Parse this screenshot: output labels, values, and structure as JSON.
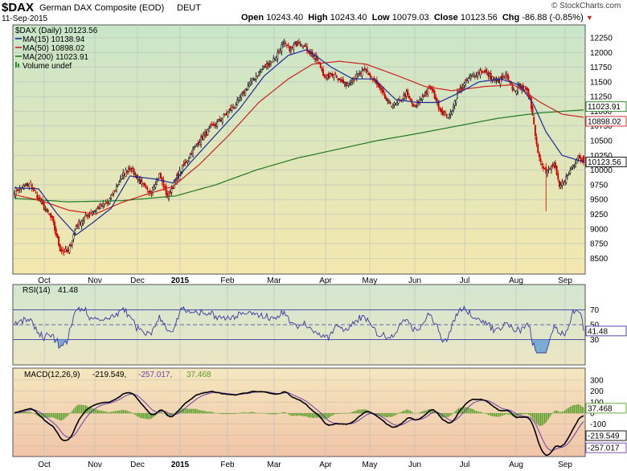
{
  "header": {
    "symbol": "$DAX",
    "name": "German DAX Composite (EOD)",
    "exchange": "DEUT",
    "date": "11-Sep-2015",
    "credit": "© StockCharts.com",
    "ohlc": [
      {
        "label": "Open",
        "value": "10243.40"
      },
      {
        "label": "High",
        "value": "10243.40"
      },
      {
        "label": "Low",
        "value": "10079.03"
      },
      {
        "label": "Close",
        "value": "10123.56"
      }
    ],
    "chg_label": "Chg",
    "chg_value": "-86.88 (-0.85%)"
  },
  "legend": [
    {
      "text": "$DAX (Daily) 10123.56",
      "color": "#000000",
      "icon": "candlestick-icon"
    },
    {
      "text": "MA(15) 10138.94",
      "color": "#1a2a9a",
      "icon": "line-icon"
    },
    {
      "text": "MA(50) 10898.02",
      "color": "#cc2020",
      "icon": "line-icon"
    },
    {
      "text": "MA(200) 11023.91",
      "color": "#1f7a1f",
      "icon": "line-icon"
    },
    {
      "text": "Volume undef",
      "color": "#2a8a2a",
      "icon": "volume-icon"
    }
  ],
  "price_tags": [
    {
      "text": "11023.91",
      "value": 11023.91,
      "color": "#1f7a1f"
    },
    {
      "text": "10898.02",
      "value": 10898.02,
      "color": "#cc2020"
    },
    {
      "text": "10123.56",
      "value": 10123.56,
      "color": "#000000"
    }
  ],
  "rsi": {
    "label": "RSI(14)",
    "value": "41.48",
    "tag": "41.48",
    "ticks": [
      70,
      50,
      30
    ],
    "color": "#3a3aa0",
    "fill_color": "#5b9bd5"
  },
  "macd": {
    "label": "MACD(12,26,9)",
    "macd_value": "-219.549,",
    "signal_value": "-257.017,",
    "hist_value": "37.468",
    "tags": [
      "37.468",
      "-219.549",
      "-257.017"
    ],
    "ticks": [
      300,
      200,
      100,
      0,
      -100,
      -200,
      -300
    ],
    "colors": {
      "macd": "#000000",
      "signal": "#6a3fb0",
      "hist": "#5aa02c"
    }
  },
  "chart_data": {
    "type": "candlestick",
    "title": "$DAX German DAX Composite (EOD) DEUT",
    "x_labels": [
      "Oct",
      "Nov",
      "Dec",
      "2015",
      "Feb",
      "Mar",
      "Apr",
      "May",
      "Jun",
      "Jul",
      "Aug",
      "Sep"
    ],
    "y_ticks": [
      12250,
      12000,
      11750,
      11500,
      11250,
      11000,
      10750,
      10500,
      10250,
      10000,
      9750,
      9500,
      9250,
      9000,
      8750,
      8500
    ],
    "ylim": [
      8300,
      12400
    ],
    "close_path_approx": [
      [
        0,
        9650
      ],
      [
        12,
        9760
      ],
      [
        18,
        9500
      ],
      [
        28,
        9160
      ],
      [
        34,
        8650
      ],
      [
        40,
        8600
      ],
      [
        46,
        9050
      ],
      [
        58,
        9300
      ],
      [
        70,
        9450
      ],
      [
        80,
        9900
      ],
      [
        86,
        10050
      ],
      [
        94,
        9800
      ],
      [
        100,
        9600
      ],
      [
        108,
        9920
      ],
      [
        114,
        9550
      ],
      [
        124,
        10000
      ],
      [
        136,
        10450
      ],
      [
        146,
        10700
      ],
      [
        158,
        10950
      ],
      [
        166,
        11150
      ],
      [
        176,
        11500
      ],
      [
        184,
        11700
      ],
      [
        194,
        11900
      ],
      [
        200,
        12150
      ],
      [
        206,
        12050
      ],
      [
        212,
        12200
      ],
      [
        218,
        12050
      ],
      [
        226,
        11850
      ],
      [
        232,
        11550
      ],
      [
        238,
        11650
      ],
      [
        246,
        11450
      ],
      [
        252,
        11550
      ],
      [
        262,
        11700
      ],
      [
        270,
        11450
      ],
      [
        278,
        11150
      ],
      [
        284,
        11100
      ],
      [
        292,
        11300
      ],
      [
        298,
        11050
      ],
      [
        304,
        11250
      ],
      [
        310,
        11400
      ],
      [
        318,
        11000
      ],
      [
        324,
        10900
      ],
      [
        330,
        11300
      ],
      [
        338,
        11550
      ],
      [
        348,
        11700
      ],
      [
        354,
        11600
      ],
      [
        360,
        11500
      ],
      [
        366,
        11600
      ],
      [
        372,
        11350
      ],
      [
        378,
        11450
      ],
      [
        384,
        11250
      ],
      [
        390,
        10300
      ],
      [
        396,
        9950
      ],
      [
        402,
        10100
      ],
      [
        406,
        9700
      ],
      [
        412,
        9900
      ],
      [
        420,
        10250
      ],
      [
        424,
        10100
      ]
    ],
    "ma15_path_approx": [
      [
        0,
        9700
      ],
      [
        18,
        9680
      ],
      [
        32,
        9250
      ],
      [
        46,
        8900
      ],
      [
        58,
        9100
      ],
      [
        72,
        9350
      ],
      [
        86,
        9900
      ],
      [
        104,
        9850
      ],
      [
        118,
        9780
      ],
      [
        132,
        10150
      ],
      [
        150,
        10600
      ],
      [
        168,
        11050
      ],
      [
        186,
        11600
      ],
      [
        204,
        11950
      ],
      [
        218,
        12050
      ],
      [
        236,
        11750
      ],
      [
        252,
        11550
      ],
      [
        268,
        11550
      ],
      [
        284,
        11200
      ],
      [
        300,
        11150
      ],
      [
        316,
        11150
      ],
      [
        330,
        11300
      ],
      [
        346,
        11500
      ],
      [
        362,
        11550
      ],
      [
        376,
        11450
      ],
      [
        386,
        11150
      ],
      [
        396,
        10650
      ],
      [
        408,
        10250
      ],
      [
        424,
        10140
      ]
    ],
    "ma50_path_approx": [
      [
        0,
        9580
      ],
      [
        20,
        9480
      ],
      [
        40,
        9320
      ],
      [
        60,
        9250
      ],
      [
        80,
        9450
      ],
      [
        100,
        9600
      ],
      [
        118,
        9720
      ],
      [
        138,
        10100
      ],
      [
        160,
        10600
      ],
      [
        182,
        11150
      ],
      [
        204,
        11550
      ],
      [
        222,
        11800
      ],
      [
        242,
        11850
      ],
      [
        262,
        11800
      ],
      [
        286,
        11600
      ],
      [
        306,
        11420
      ],
      [
        326,
        11350
      ],
      [
        350,
        11420
      ],
      [
        372,
        11450
      ],
      [
        392,
        11150
      ],
      [
        408,
        10950
      ],
      [
        424,
        10898
      ]
    ],
    "ma200_path_approx": [
      [
        0,
        9520
      ],
      [
        40,
        9460
      ],
      [
        80,
        9480
      ],
      [
        120,
        9560
      ],
      [
        150,
        9750
      ],
      [
        180,
        10000
      ],
      [
        210,
        10200
      ],
      [
        240,
        10350
      ],
      [
        270,
        10500
      ],
      [
        300,
        10620
      ],
      [
        330,
        10750
      ],
      [
        360,
        10880
      ],
      [
        390,
        10970
      ],
      [
        424,
        11024
      ]
    ],
    "last": {
      "open": 10243.4,
      "high": 10243.4,
      "low": 10079.03,
      "close": 10123.56,
      "chg": -86.88,
      "chg_pct": -0.85
    }
  }
}
